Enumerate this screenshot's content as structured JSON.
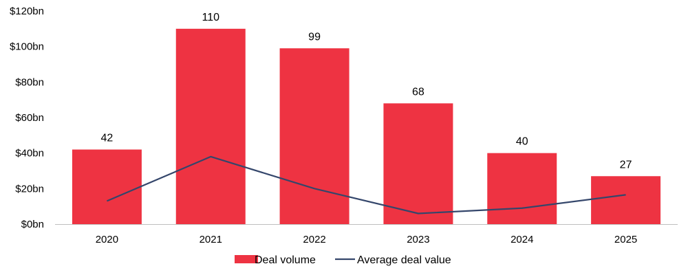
{
  "chart_data": {
    "type": "bar",
    "categories": [
      "2020",
      "2021",
      "2022",
      "2023",
      "2024",
      "2025"
    ],
    "series": [
      {
        "name": "Deal volume",
        "kind": "bar",
        "values": [
          42,
          110,
          99,
          68,
          40,
          27
        ],
        "color": "#ee3342"
      },
      {
        "name": "Average deal value",
        "kind": "line",
        "values": [
          13,
          38,
          20,
          6,
          9,
          16.5
        ],
        "color": "#34466b"
      }
    ],
    "data_labels": [
      "42",
      "110",
      "99",
      "68",
      "40",
      "27"
    ],
    "y_ticks": [
      "$0bn",
      "$20bn",
      "$40bn",
      "$60bn",
      "$80bn",
      "$100bn",
      "$120bn"
    ],
    "ylim": [
      0,
      120
    ],
    "grid": false,
    "legend_position": "bottom"
  }
}
